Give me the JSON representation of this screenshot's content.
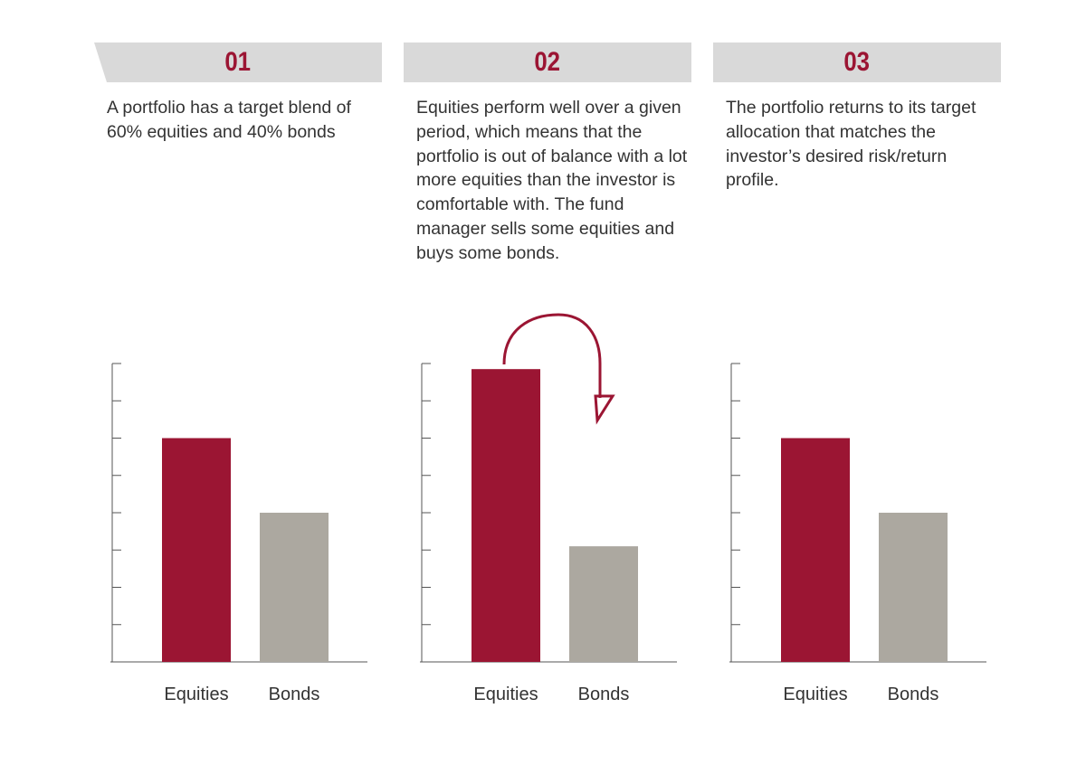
{
  "colors": {
    "equities": "#9b1533",
    "bonds": "#aca8a0",
    "banner": "#d9d9d9",
    "number": "#9b1533"
  },
  "panels": [
    {
      "number": "01",
      "text": "A portfolio has a target blend of 60% equities and 40% bonds"
    },
    {
      "number": "02",
      "text": "Equities perform well over a given period, which means that the portfolio is out of balance with a lot more equities than the investor is comfortable with. The fund manager sells some equities and buys some bonds.",
      "arrow_icon": "curved-arrow-icon"
    },
    {
      "number": "03",
      "text": "The portfolio returns to its target allocation that matches the investor’s desired risk/return profile."
    }
  ],
  "chart_data": [
    {
      "type": "bar",
      "categories": [
        "Equities",
        "Bonds"
      ],
      "values": [
        60,
        40
      ],
      "ylim": [
        0,
        80
      ],
      "ticks": 8,
      "grid": false
    },
    {
      "type": "bar",
      "categories": [
        "Equities",
        "Bonds"
      ],
      "values": [
        78.5,
        31
      ],
      "ylim": [
        0,
        80
      ],
      "ticks": 8,
      "grid": false
    },
    {
      "type": "bar",
      "categories": [
        "Equities",
        "Bonds"
      ],
      "values": [
        60,
        40
      ],
      "ylim": [
        0,
        80
      ],
      "ticks": 8,
      "grid": false
    }
  ]
}
